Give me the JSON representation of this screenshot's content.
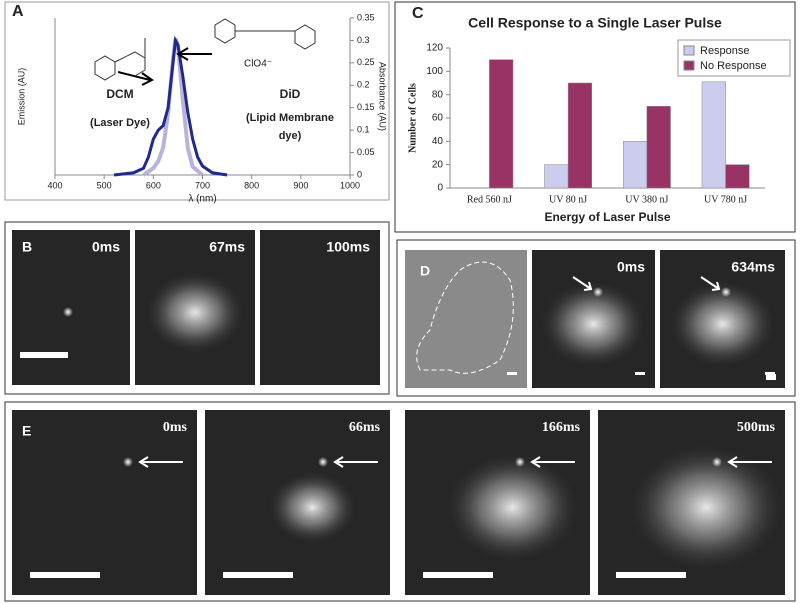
{
  "chart_data": [
    {
      "type": "line",
      "label": "A",
      "xlabel": "λ (nm)",
      "ylabel": "Emission (AU)",
      "y2label": "Absorbance (AU)",
      "xlim": [
        400,
        1000
      ],
      "xticks": [
        400,
        500,
        600,
        700,
        800,
        900,
        1000
      ],
      "ylim": [
        0,
        1.15
      ],
      "y2lim": [
        0,
        0.35
      ],
      "y2ticks": [
        0,
        0.05,
        0.1,
        0.15,
        0.2,
        0.25,
        0.3,
        0.35
      ],
      "series": [
        {
          "color": "#b9b3dc",
          "axis": "y",
          "x": [
            580,
            600,
            610,
            620,
            630,
            640,
            645,
            650,
            660,
            670,
            680,
            700
          ],
          "values": [
            0,
            0.05,
            0.1,
            0.2,
            0.45,
            0.85,
            1,
            0.95,
            0.55,
            0.2,
            0.06,
            0
          ]
        },
        {
          "color": "#1f2a8c",
          "axis": "y2",
          "x": [
            520,
            560,
            580,
            590,
            600,
            610,
            620,
            630,
            640,
            645,
            650,
            660,
            670,
            680,
            690,
            700,
            720,
            750
          ],
          "values": [
            0,
            0.005,
            0.015,
            0.04,
            0.08,
            0.1,
            0.11,
            0.15,
            0.25,
            0.3,
            0.29,
            0.22,
            0.14,
            0.08,
            0.04,
            0.02,
            0.005,
            0
          ]
        }
      ],
      "annotations": [
        "DCM",
        "(Laser Dye)",
        "DiD",
        "(Lipid Membrane",
        "dye)",
        "ClO4⁻"
      ]
    },
    {
      "type": "bar",
      "label": "C",
      "title": "Cell Response to a Single Laser Pulse",
      "xlabel": "Energy of Laser Pulse",
      "ylabel": "Number of Cells",
      "categories": [
        "Red 560 nJ",
        "UV 80 nJ",
        "UV 380 nJ",
        "UV 780 nJ"
      ],
      "series": [
        {
          "name": "Response",
          "color": "#ccccee",
          "values": [
            0,
            20,
            40,
            91
          ]
        },
        {
          "name": "No Response",
          "color": "#993366",
          "values": [
            110,
            90,
            70,
            20
          ]
        }
      ],
      "ylim": [
        0,
        120
      ],
      "yticks": [
        0,
        20,
        40,
        60,
        80,
        100,
        120
      ],
      "legend": "top-right"
    }
  ],
  "panels": {
    "B": {
      "label": "B",
      "frames": [
        "0ms",
        "67ms",
        "100ms"
      ]
    },
    "D": {
      "label": "D",
      "frames": [
        "",
        "0ms",
        "634ms"
      ]
    },
    "E": {
      "label": "E",
      "frames": [
        "0ms",
        "66ms",
        "166ms",
        "500ms"
      ]
    }
  }
}
